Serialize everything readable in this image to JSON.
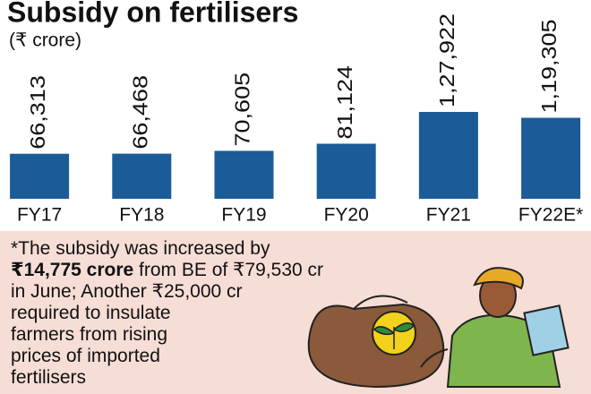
{
  "chart_data": {
    "type": "bar",
    "title": "Subsidy on fertilisers",
    "subtitle": "(₹ crore)",
    "categories": [
      "FY17",
      "FY18",
      "FY19",
      "FY20",
      "FY21",
      "FY22E*"
    ],
    "values": [
      66313,
      66468,
      70605,
      81124,
      127922,
      119305
    ],
    "value_labels": [
      "66,313",
      "66,468",
      "70,605",
      "81,124",
      "1,27,922",
      "1,19,305"
    ],
    "color": "#1b5c98"
  },
  "note_lines": [
    [
      {
        "text": "*The subsidy was increased by"
      }
    ],
    [
      {
        "text": "₹14,775 crore",
        "bold": true
      },
      {
        "text": " from BE of ₹79,530 cr"
      }
    ],
    [
      {
        "text": "in June; Another ₹25,000 cr"
      }
    ],
    [
      {
        "text": "required to insulate"
      }
    ],
    [
      {
        "text": "farmers from rising"
      }
    ],
    [
      {
        "text": "prices of imported"
      }
    ],
    [
      {
        "text": "fertilisers"
      }
    ]
  ]
}
